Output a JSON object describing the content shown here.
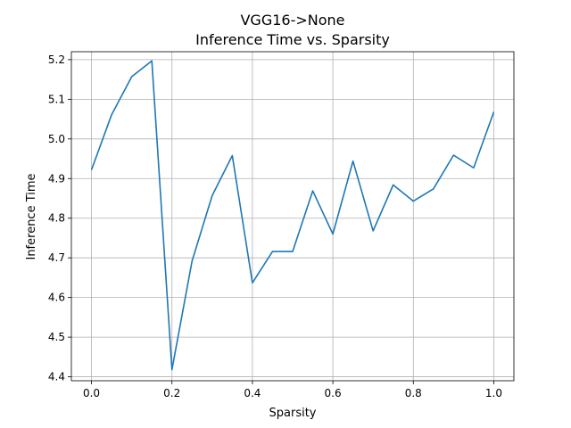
{
  "chart_data": {
    "type": "line",
    "title": "VGG16->None",
    "subtitle": "Inference Time vs. Sparsity",
    "xlabel": "Sparsity",
    "ylabel": "Inference Time",
    "xlim": [
      -0.05,
      1.05
    ],
    "ylim": [
      4.39,
      5.22
    ],
    "xticks": [
      0.0,
      0.2,
      0.4,
      0.6,
      0.8,
      1.0
    ],
    "xtick_labels": [
      "0.0",
      "0.2",
      "0.4",
      "0.6",
      "0.8",
      "1.0"
    ],
    "yticks": [
      4.4,
      4.5,
      4.6,
      4.7,
      4.8,
      4.9,
      5.0,
      5.1,
      5.2
    ],
    "ytick_labels": [
      "4.4",
      "4.5",
      "4.6",
      "4.7",
      "4.8",
      "4.9",
      "5.0",
      "5.1",
      "5.2"
    ],
    "grid": true,
    "series": [
      {
        "color": "#1f77b4",
        "x": [
          0.0,
          0.05,
          0.1,
          0.15,
          0.2,
          0.25,
          0.3,
          0.35,
          0.4,
          0.45,
          0.5,
          0.55,
          0.6,
          0.65,
          0.7,
          0.75,
          0.8,
          0.85,
          0.9,
          0.95,
          1.0
        ],
        "y": [
          4.922,
          5.061,
          5.157,
          5.197,
          4.418,
          4.692,
          4.857,
          4.958,
          4.637,
          4.716,
          4.716,
          4.869,
          4.76,
          4.944,
          4.768,
          4.884,
          4.843,
          4.874,
          4.959,
          4.927,
          5.068
        ]
      }
    ]
  }
}
